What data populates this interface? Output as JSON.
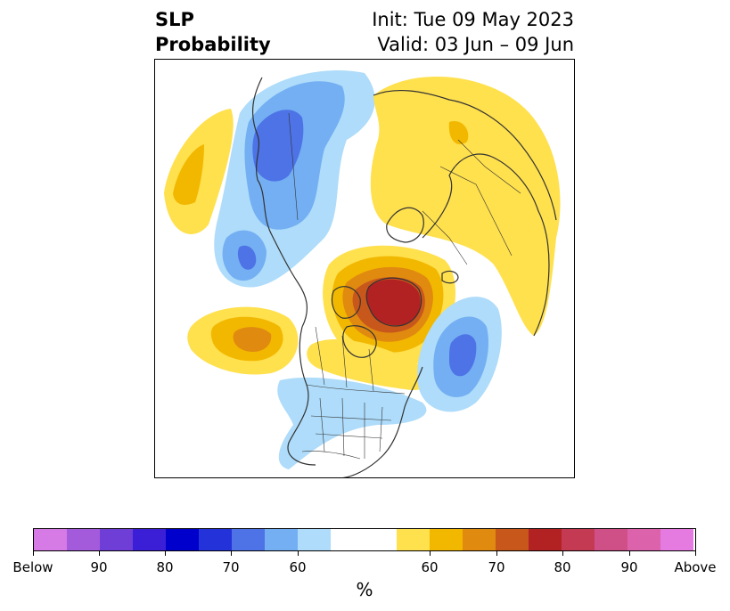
{
  "title": {
    "line1": "SLP",
    "line2": "Probability",
    "init": "Init: Tue 09 May 2023",
    "valid": "Valid: 03 Jun – 09 Jun"
  },
  "colorbar": {
    "colors": [
      "#d67ae6",
      "#a35bdc",
      "#6e3ed6",
      "#3a1fd6",
      "#0000cc",
      "#2433d9",
      "#4d73e6",
      "#73aff2",
      "#aedcfa",
      "#ffffff",
      "#ffe04d",
      "#f2b800",
      "#e08a10",
      "#c8571b",
      "#b32222",
      "#c43a52",
      "#cf5087",
      "#dc62ac",
      "#e57ae0"
    ],
    "labels": [
      "Below",
      "90",
      "80",
      "70",
      "60",
      "60",
      "70",
      "80",
      "90",
      "Above"
    ],
    "unit": "%"
  }
}
